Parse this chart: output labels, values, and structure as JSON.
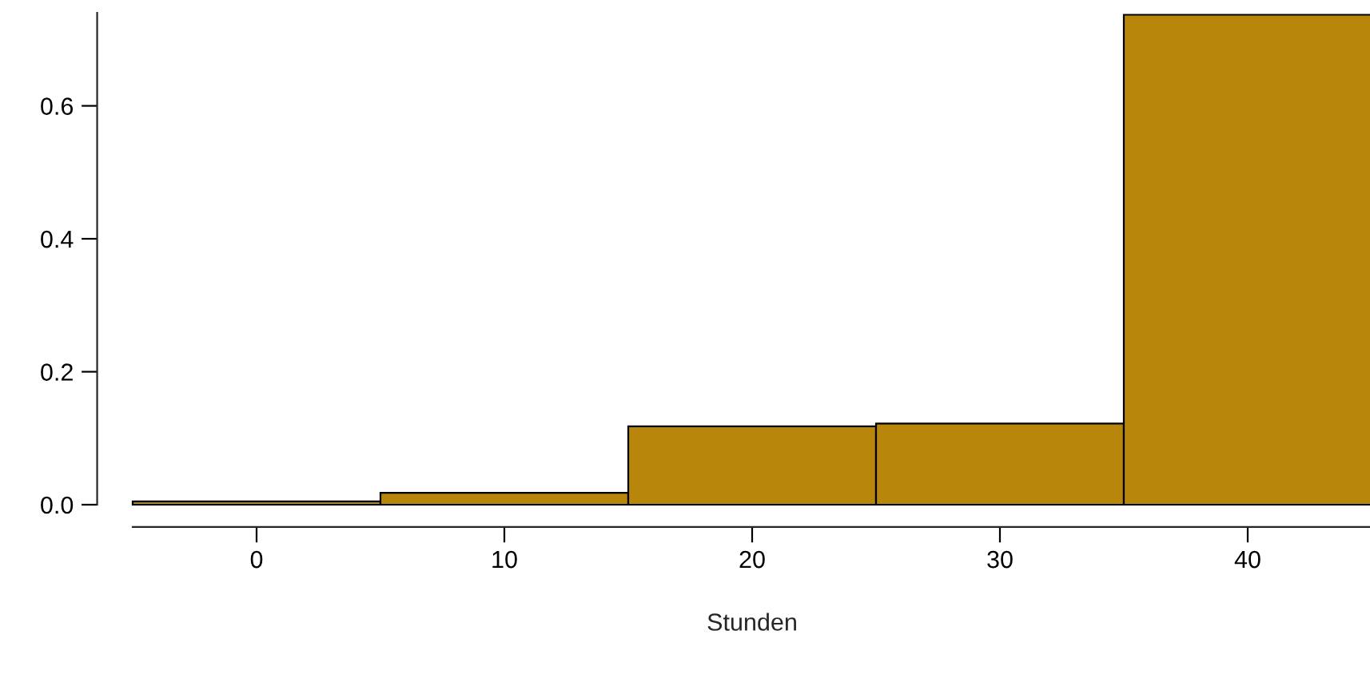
{
  "chart_data": {
    "type": "histogram",
    "xlabel": "Stunden",
    "bins": [
      -5,
      5,
      15,
      25,
      35,
      45
    ],
    "values": [
      0.005,
      0.018,
      0.118,
      0.122,
      0.737
    ],
    "color": "#b8860b",
    "xlim": [
      -5,
      45
    ],
    "ylim": [
      0,
      0.74
    ],
    "xticks": [
      0,
      10,
      20,
      30,
      40
    ],
    "yticks": [
      {
        "value": 0,
        "label": "0.0"
      },
      {
        "value": 0.2,
        "label": "0.2"
      },
      {
        "value": 0.4,
        "label": "0.4"
      },
      {
        "value": 0.6,
        "label": "0.6"
      }
    ],
    "grid": false
  }
}
